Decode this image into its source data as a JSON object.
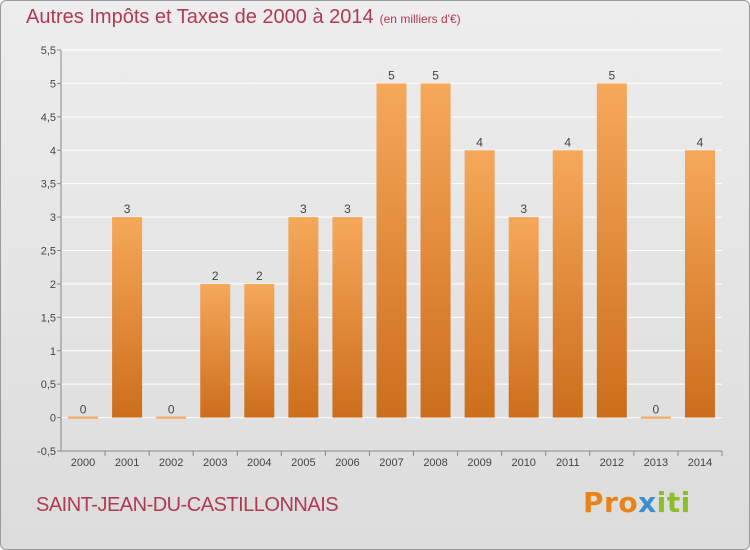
{
  "header": {
    "title": "Autres Impôts et Taxes de 2000 à 2014",
    "subtitle": "(en milliers d'€)"
  },
  "footer": {
    "commune": "SAINT-JEAN-DU-CASTILLONNAIS",
    "brand": "Proxiti"
  },
  "colors": {
    "bar_light": "#f6a85a",
    "bar_dark": "#cc6e1c",
    "title": "#b03a52",
    "grid": "#ffffff"
  },
  "chart_data": {
    "type": "bar",
    "title": "Autres Impôts et Taxes de 2000 à 2014",
    "subtitle": "(en milliers d'€)",
    "categories": [
      "2000",
      "2001",
      "2002",
      "2003",
      "2004",
      "2005",
      "2006",
      "2007",
      "2008",
      "2009",
      "2010",
      "2011",
      "2012",
      "2013",
      "2014"
    ],
    "values": [
      0,
      3,
      0,
      2,
      2,
      3,
      3,
      5,
      5,
      4,
      3,
      4,
      5,
      0,
      4
    ],
    "data_labels": [
      "0",
      "3",
      "0",
      "2",
      "2",
      "3",
      "3",
      "5",
      "5",
      "4",
      "3",
      "4",
      "5",
      "0",
      "4"
    ],
    "y_ticks": [
      "-0,5",
      "0",
      "0,5",
      "1",
      "1,5",
      "2",
      "2,5",
      "3",
      "3,5",
      "4",
      "4,5",
      "5",
      "5,5"
    ],
    "ylim": [
      -0.5,
      5.5
    ],
    "grid": true
  }
}
